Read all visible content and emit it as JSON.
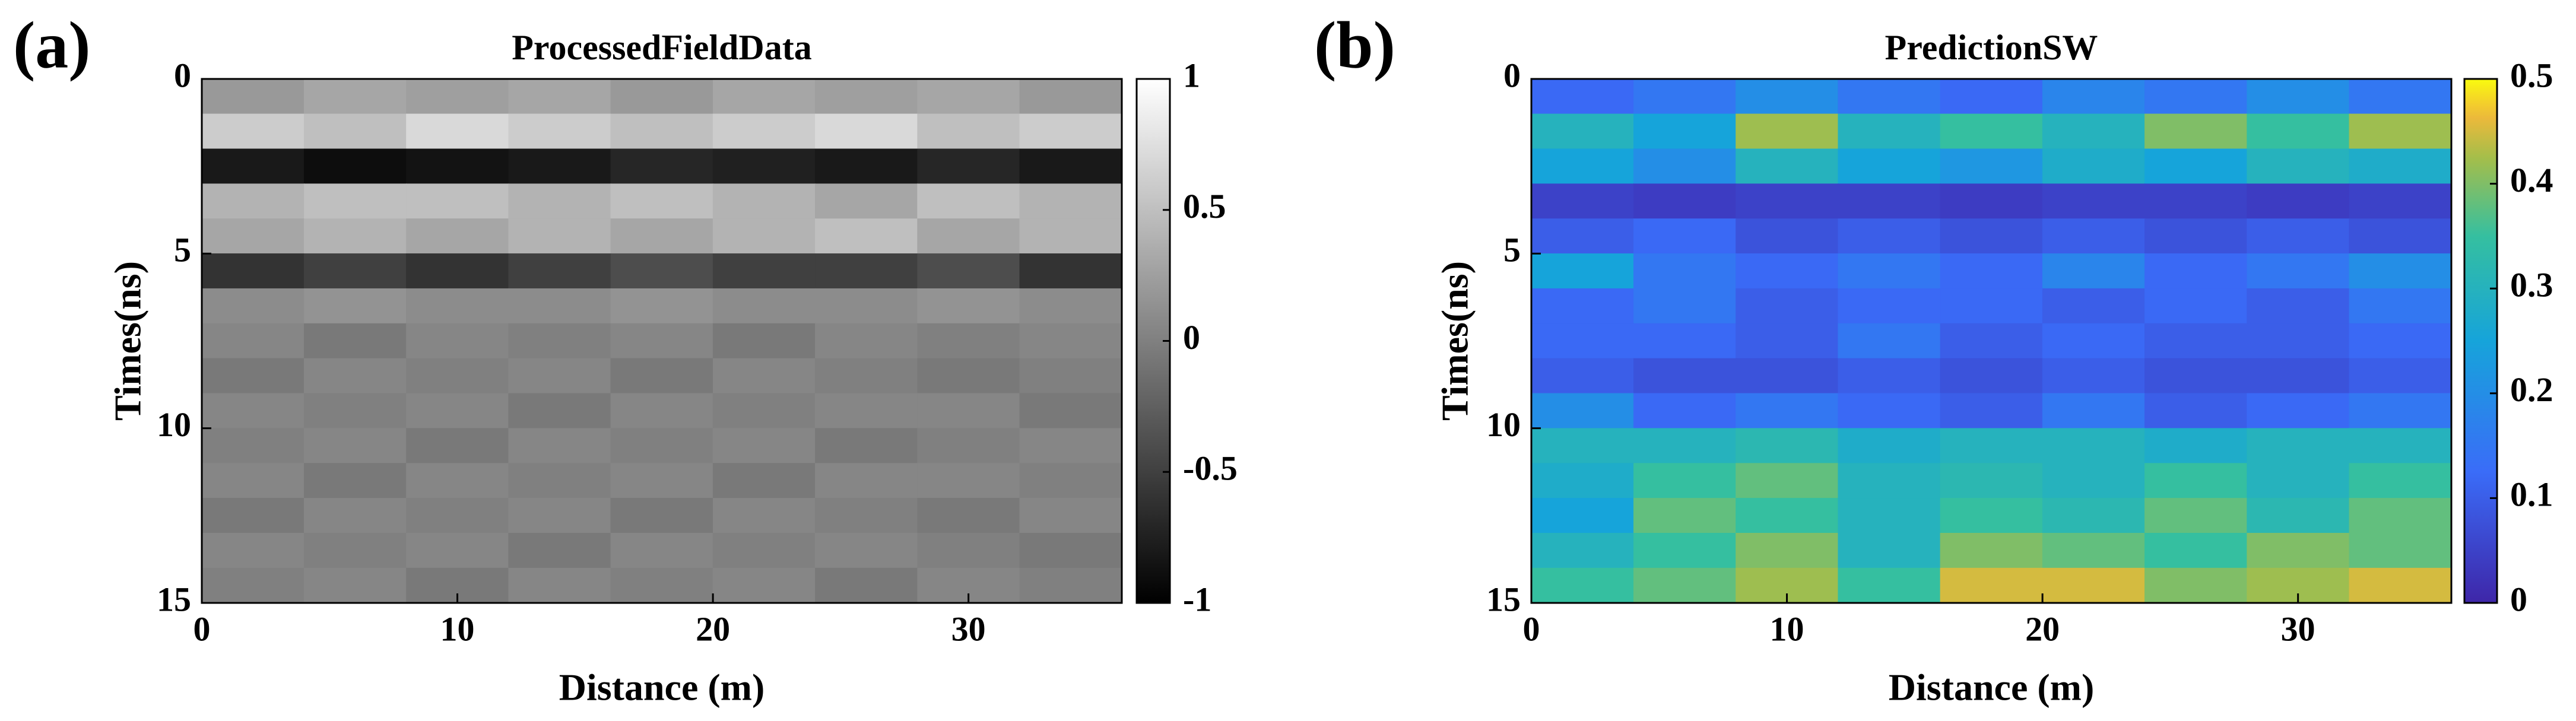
{
  "chart_data": [
    {
      "type": "heatmap",
      "panel_label": "(a)",
      "title": "ProcessedFieldData",
      "x_label": "Distance (m)",
      "y_label": "Times(ns)",
      "x": [
        2,
        6,
        10,
        14,
        18,
        22,
        26,
        30,
        34
      ],
      "y": [
        0.5,
        1.5,
        2.5,
        3.5,
        4.5,
        5.5,
        6.5,
        7.5,
        8.5,
        9.5,
        10.5,
        11.5,
        12.5,
        13.5,
        14.5
      ],
      "z": [
        [
          0.2,
          0.3,
          0.25,
          0.3,
          0.2,
          0.3,
          0.25,
          0.3,
          0.2
        ],
        [
          0.6,
          0.5,
          0.7,
          0.6,
          0.5,
          0.6,
          0.7,
          0.5,
          0.6
        ],
        [
          -0.8,
          -0.9,
          -0.85,
          -0.8,
          -0.7,
          -0.75,
          -0.8,
          -0.7,
          -0.8
        ],
        [
          0.4,
          0.5,
          0.5,
          0.4,
          0.5,
          0.4,
          0.3,
          0.5,
          0.4
        ],
        [
          0.3,
          0.4,
          0.3,
          0.4,
          0.3,
          0.4,
          0.5,
          0.3,
          0.4
        ],
        [
          -0.6,
          -0.5,
          -0.6,
          -0.5,
          -0.4,
          -0.5,
          -0.5,
          -0.4,
          -0.6
        ],
        [
          0.1,
          0.15,
          0.1,
          0.1,
          0.15,
          0.1,
          0.1,
          0.15,
          0.1
        ],
        [
          0.05,
          -0.05,
          0.05,
          0,
          0.05,
          -0.05,
          0.05,
          0,
          0.05
        ],
        [
          -0.05,
          0.05,
          0,
          0.05,
          -0.05,
          0.05,
          0,
          -0.05,
          0
        ],
        [
          0.05,
          0,
          0.05,
          -0.05,
          0.05,
          0,
          0.05,
          0.05,
          -0.05
        ],
        [
          0,
          0.05,
          -0.05,
          0.05,
          0,
          0.05,
          -0.05,
          0,
          0.05
        ],
        [
          0.05,
          -0.05,
          0.05,
          0,
          0.05,
          -0.05,
          0.05,
          0.05,
          0
        ],
        [
          -0.05,
          0.05,
          0,
          0.05,
          -0.05,
          0.05,
          0,
          -0.05,
          0.05
        ],
        [
          0.05,
          0,
          0.05,
          -0.05,
          0.05,
          0,
          0.05,
          0,
          -0.05
        ],
        [
          0,
          0.05,
          -0.05,
          0.05,
          0,
          0.05,
          -0.05,
          0.05,
          0
        ]
      ],
      "xlim": [
        0,
        36
      ],
      "ylim": [
        15,
        0
      ],
      "xticks": [
        0,
        10,
        20,
        30
      ],
      "yticks": [
        0,
        5,
        10,
        15
      ],
      "colormap": "gray",
      "clim": [
        -1,
        1
      ],
      "cticks": [
        -1,
        -0.5,
        0,
        0.5,
        1
      ]
    },
    {
      "type": "heatmap",
      "panel_label": "(b)",
      "title": "PredictionSW",
      "x_label": "Distance (m)",
      "y_label": "Times(ns)",
      "x": [
        2,
        6,
        10,
        14,
        18,
        22,
        26,
        30,
        34
      ],
      "y": [
        0.5,
        1.5,
        2.5,
        3.5,
        4.5,
        5.5,
        6.5,
        7.5,
        8.5,
        9.5,
        10.5,
        11.5,
        12.5,
        13.5,
        14.5
      ],
      "z": [
        [
          0.12,
          0.15,
          0.2,
          0.15,
          0.12,
          0.18,
          0.15,
          0.2,
          0.15
        ],
        [
          0.3,
          0.25,
          0.42,
          0.3,
          0.35,
          0.3,
          0.4,
          0.35,
          0.42
        ],
        [
          0.25,
          0.2,
          0.3,
          0.25,
          0.22,
          0.28,
          0.25,
          0.3,
          0.28
        ],
        [
          0.05,
          0.04,
          0.05,
          0.05,
          0.04,
          0.05,
          0.05,
          0.04,
          0.05
        ],
        [
          0.1,
          0.12,
          0.08,
          0.1,
          0.08,
          0.1,
          0.08,
          0.1,
          0.08
        ],
        [
          0.25,
          0.15,
          0.12,
          0.15,
          0.12,
          0.18,
          0.12,
          0.15,
          0.2
        ],
        [
          0.12,
          0.15,
          0.1,
          0.12,
          0.12,
          0.1,
          0.12,
          0.1,
          0.15
        ],
        [
          0.12,
          0.12,
          0.1,
          0.15,
          0.1,
          0.12,
          0.1,
          0.1,
          0.12
        ],
        [
          0.1,
          0.08,
          0.08,
          0.1,
          0.08,
          0.1,
          0.08,
          0.08,
          0.1
        ],
        [
          0.2,
          0.12,
          0.15,
          0.12,
          0.1,
          0.15,
          0.1,
          0.12,
          0.15
        ],
        [
          0.3,
          0.3,
          0.32,
          0.28,
          0.3,
          0.3,
          0.28,
          0.3,
          0.3
        ],
        [
          0.28,
          0.35,
          0.38,
          0.3,
          0.32,
          0.3,
          0.35,
          0.3,
          0.35
        ],
        [
          0.25,
          0.38,
          0.35,
          0.3,
          0.35,
          0.32,
          0.38,
          0.32,
          0.38
        ],
        [
          0.3,
          0.35,
          0.4,
          0.3,
          0.4,
          0.38,
          0.35,
          0.4,
          0.38
        ],
        [
          0.35,
          0.38,
          0.42,
          0.35,
          0.45,
          0.45,
          0.4,
          0.42,
          0.45
        ]
      ],
      "xlim": [
        0,
        36
      ],
      "ylim": [
        15,
        0
      ],
      "xticks": [
        0,
        10,
        20,
        30
      ],
      "yticks": [
        0,
        5,
        10,
        15
      ],
      "colormap": "parula",
      "clim": [
        0,
        0.5
      ],
      "cticks": [
        0,
        0.1,
        0.2,
        0.3,
        0.4,
        0.5
      ]
    }
  ]
}
